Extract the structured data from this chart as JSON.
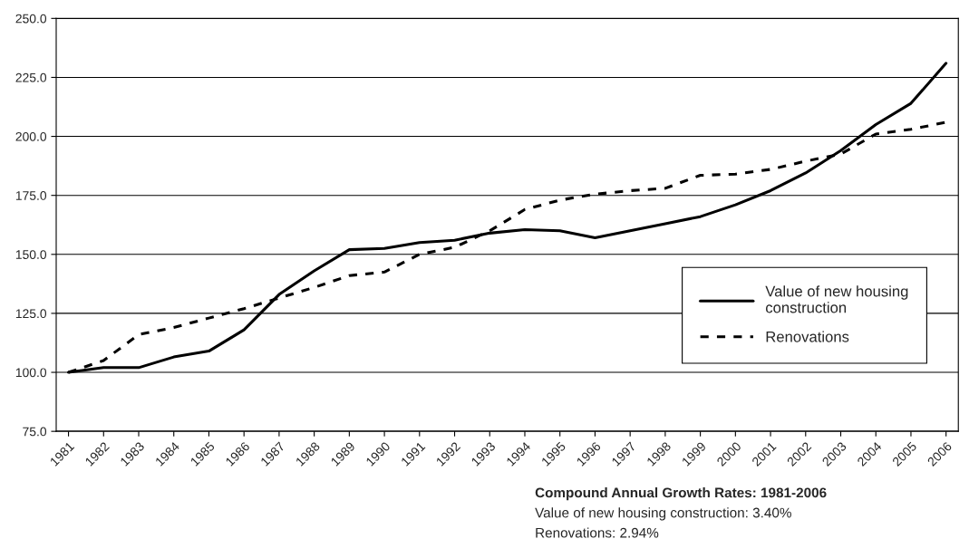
{
  "chart_data": {
    "type": "line",
    "categories": [
      "1981",
      "1982",
      "1983",
      "1984",
      "1985",
      "1986",
      "1987",
      "1988",
      "1989",
      "1990",
      "1991",
      "1992",
      "1993",
      "1994",
      "1995",
      "1996",
      "1997",
      "1998",
      "1999",
      "2000",
      "2001",
      "2002",
      "2003",
      "2004",
      "2005",
      "2006"
    ],
    "series": [
      {
        "name": "Value of new housing construction",
        "color": "#000000",
        "line_style": "solid",
        "values": [
          100,
          102,
          102,
          106.5,
          109,
          118,
          133,
          143,
          152,
          152.5,
          155,
          156,
          159,
          160.5,
          160,
          157,
          160,
          163,
          166,
          171,
          177,
          184.5,
          194,
          205,
          214,
          231
        ]
      },
      {
        "name": "Renovations",
        "color": "#000000",
        "line_style": "dashed",
        "values": [
          100,
          105,
          116,
          119,
          123,
          127,
          131.5,
          136,
          141,
          142.5,
          150,
          153,
          160,
          169,
          173,
          175.5,
          177,
          178,
          183.5,
          184,
          186,
          189.5,
          192.5,
          201,
          203,
          206
        ]
      }
    ],
    "ylim": [
      75,
      250
    ],
    "yticks": [
      {
        "value": 75,
        "label": "75.0"
      },
      {
        "value": 100,
        "label": "100.0"
      },
      {
        "value": 125,
        "label": "125.0"
      },
      {
        "value": 150,
        "label": "150.0"
      },
      {
        "value": 175,
        "label": "175.0"
      },
      {
        "value": 200,
        "label": "200.0"
      },
      {
        "value": 225,
        "label": "225.0"
      },
      {
        "value": 250,
        "label": "250.0"
      }
    ],
    "grid": "y",
    "legend": "lower right",
    "marker": "none",
    "annotations": [
      "Compound Annual Growth Rates: 1981-2006",
      "Value of new housing construction: 3.40%",
      "Renovations: 2.94%"
    ]
  }
}
